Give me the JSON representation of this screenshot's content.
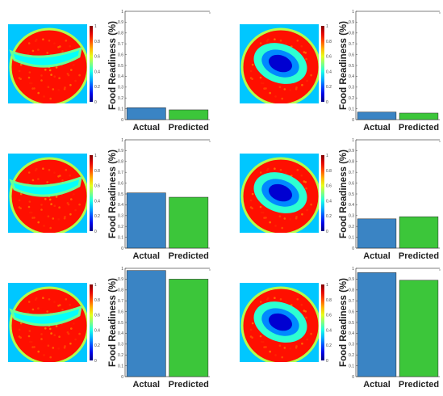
{
  "colors": {
    "actual": "#3a84c4",
    "predicted": "#3cc63a",
    "axis": "#555555",
    "tick_text": "#444444"
  },
  "colorbar": {
    "ticks": [
      "0",
      "0.2",
      "0.4",
      "0.6",
      "0.8",
      "1"
    ],
    "colormap": "jet"
  },
  "heatmap_pattern": [
    "elongated-channel",
    "central-cavity",
    "elongated-channel",
    "central-cavity",
    "elongated-channel",
    "central-cavity"
  ],
  "chart_data": [
    {
      "type": "bar",
      "panel": "top-left",
      "ylabel": "Food Readiness (%)",
      "ylim": [
        0,
        1
      ],
      "yticks": [
        "0",
        "0.1",
        "0.2",
        "0.3",
        "0.4",
        "0.5",
        "0.6",
        "0.7",
        "0.8",
        "0.9",
        "1"
      ],
      "categories": [
        "Actual",
        "Predicted"
      ],
      "values": [
        0.11,
        0.09
      ]
    },
    {
      "type": "bar",
      "panel": "top-right",
      "ylabel": "Food Readiness (%)",
      "ylim": [
        0,
        1
      ],
      "yticks": [
        "0",
        "0.1",
        "0.2",
        "0.3",
        "0.4",
        "0.5",
        "0.6",
        "0.7",
        "0.8",
        "0.9",
        "1"
      ],
      "categories": [
        "Actual",
        "Predicted"
      ],
      "values": [
        0.07,
        0.06
      ]
    },
    {
      "type": "bar",
      "panel": "middle-left",
      "ylabel": "Food Readiness (%)",
      "ylim": [
        0,
        1
      ],
      "yticks": [
        "0",
        "0.1",
        "0.2",
        "0.3",
        "0.4",
        "0.5",
        "0.6",
        "0.7",
        "0.8",
        "0.9",
        "1"
      ],
      "categories": [
        "Actual",
        "Predicted"
      ],
      "values": [
        0.51,
        0.47
      ]
    },
    {
      "type": "bar",
      "panel": "middle-right",
      "ylabel": "Food Readiness (%)",
      "ylim": [
        0,
        1
      ],
      "yticks": [
        "0",
        "0.1",
        "0.2",
        "0.3",
        "0.4",
        "0.5",
        "0.6",
        "0.7",
        "0.8",
        "0.9",
        "1"
      ],
      "categories": [
        "Actual",
        "Predicted"
      ],
      "values": [
        0.27,
        0.29
      ]
    },
    {
      "type": "bar",
      "panel": "bottom-left",
      "ylabel": "Food Readiness (%)",
      "ylim": [
        0,
        1
      ],
      "yticks": [
        "0",
        "0.1",
        "0.2",
        "0.3",
        "0.4",
        "0.5",
        "0.6",
        "0.7",
        "0.8",
        "0.9",
        "1"
      ],
      "categories": [
        "Actual",
        "Predicted"
      ],
      "values": [
        0.98,
        0.9
      ]
    },
    {
      "type": "bar",
      "panel": "bottom-right",
      "ylabel": "Food Readiness (%)",
      "ylim": [
        0,
        1
      ],
      "yticks": [
        "0",
        "0.1",
        "0.2",
        "0.3",
        "0.4",
        "0.5",
        "0.6",
        "0.7",
        "0.8",
        "0.9",
        "1"
      ],
      "categories": [
        "Actual",
        "Predicted"
      ],
      "values": [
        0.96,
        0.89
      ]
    }
  ]
}
